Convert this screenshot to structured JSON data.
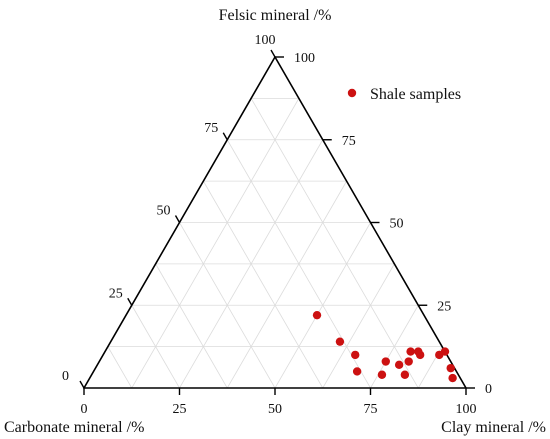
{
  "chart_data": {
    "type": "scatter",
    "subtype": "ternary",
    "axes": {
      "top": {
        "label": "Felsic mineral /%",
        "ticks": [
          "0",
          "25",
          "50",
          "75",
          "100"
        ]
      },
      "left": {
        "label": "Carbonate mineral /%",
        "ticks": [
          "0",
          "25",
          "50",
          "75",
          "100"
        ]
      },
      "right": {
        "label": "Clay mineral /%",
        "ticks": [
          "0",
          "25",
          "50",
          "75",
          "100"
        ]
      }
    },
    "grid": true,
    "legend": {
      "position": "top-right"
    },
    "series": [
      {
        "name": "Shale samples",
        "color": "#cc1111",
        "points": [
          {
            "clay": 50,
            "felsic": 22,
            "carbonate": 28
          },
          {
            "clay": 60,
            "felsic": 14,
            "carbonate": 26
          },
          {
            "clay": 66,
            "felsic": 10,
            "carbonate": 24
          },
          {
            "clay": 69,
            "felsic": 5,
            "carbonate": 26
          },
          {
            "clay": 75,
            "felsic": 8,
            "carbonate": 17
          },
          {
            "clay": 76,
            "felsic": 4,
            "carbonate": 20
          },
          {
            "clay": 79,
            "felsic": 7,
            "carbonate": 14
          },
          {
            "clay": 81,
            "felsic": 8,
            "carbonate": 11
          },
          {
            "clay": 82,
            "felsic": 4,
            "carbonate": 14
          },
          {
            "clay": 80,
            "felsic": 11,
            "carbonate": 9
          },
          {
            "clay": 82,
            "felsic": 11,
            "carbonate": 7
          },
          {
            "clay": 83,
            "felsic": 10,
            "carbonate": 7
          },
          {
            "clay": 88,
            "felsic": 10,
            "carbonate": 2
          },
          {
            "clay": 89,
            "felsic": 11,
            "carbonate": 0
          },
          {
            "clay": 93,
            "felsic": 6,
            "carbonate": 1
          },
          {
            "clay": 95,
            "felsic": 3,
            "carbonate": 2
          }
        ]
      }
    ]
  }
}
